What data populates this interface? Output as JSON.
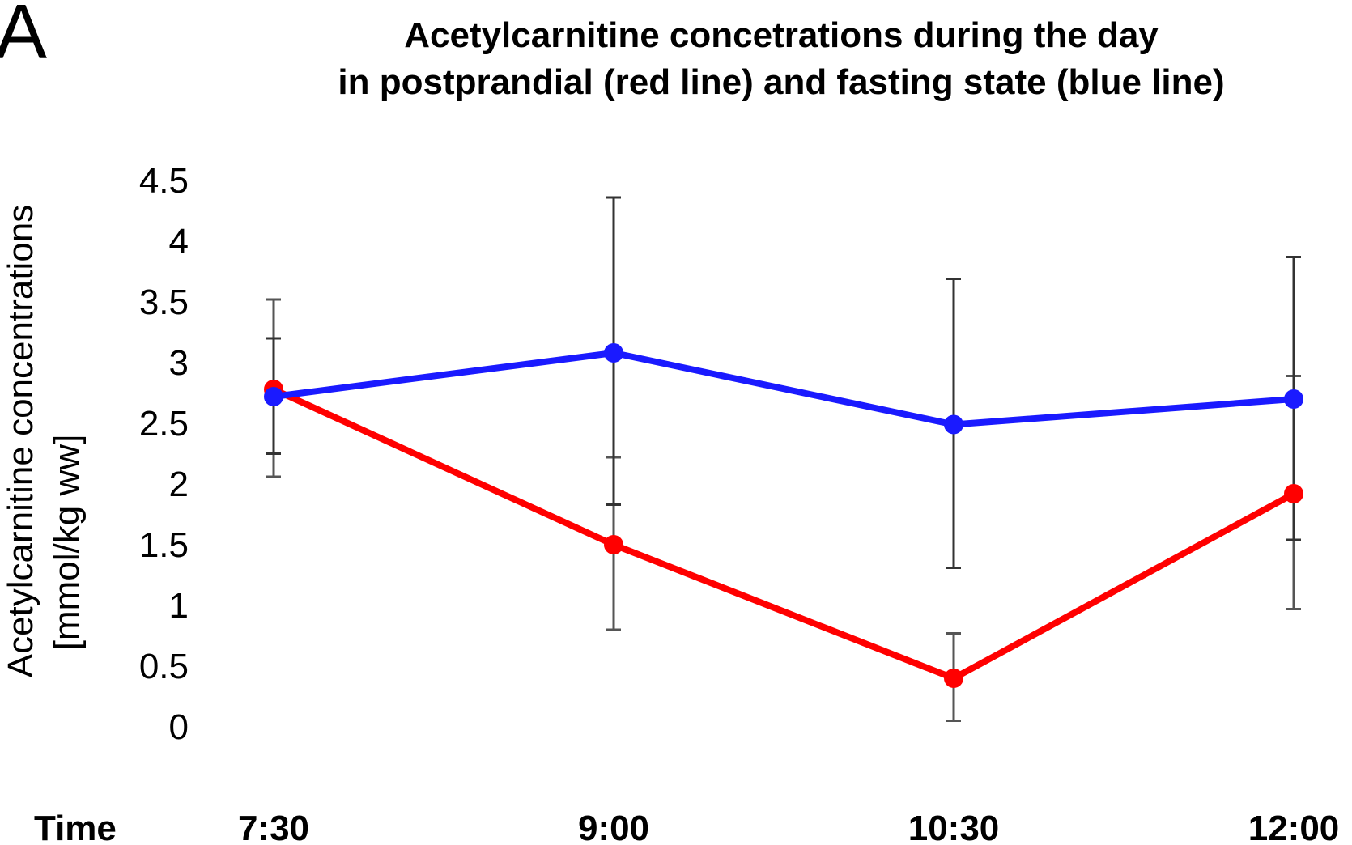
{
  "panel_label": "A",
  "chart_data": {
    "type": "line",
    "title": [
      "Acetylcarnitine concetrations during the day",
      "in postprandial (red line) and fasting state (blue line)"
    ],
    "xlabel": "Time",
    "ylabel": [
      "Acetylcarnitine concentrations",
      "[mmol/kg ww]"
    ],
    "categories": [
      "7:30",
      "9:00",
      "10:30",
      "12:00"
    ],
    "yticks": [
      "0",
      "0.5",
      "1",
      "1.5",
      "2",
      "2.5",
      "3",
      "3.5",
      "4",
      "4.5"
    ],
    "ylim": [
      0,
      4.5
    ],
    "grid": false,
    "series": [
      {
        "name": "postprandial",
        "color": "#ff0000",
        "values": [
          2.78,
          1.5,
          0.4,
          1.92
        ],
        "err_low": [
          2.06,
          0.8,
          0.05,
          0.97
        ],
        "err_high": [
          3.52,
          2.22,
          0.77,
          2.89
        ]
      },
      {
        "name": "fasting",
        "color": "#1a1aff",
        "values": [
          2.72,
          3.08,
          2.49,
          2.7
        ],
        "err_low": [
          2.25,
          1.83,
          1.31,
          1.54
        ],
        "err_high": [
          3.2,
          4.36,
          3.69,
          3.87
        ]
      }
    ]
  }
}
